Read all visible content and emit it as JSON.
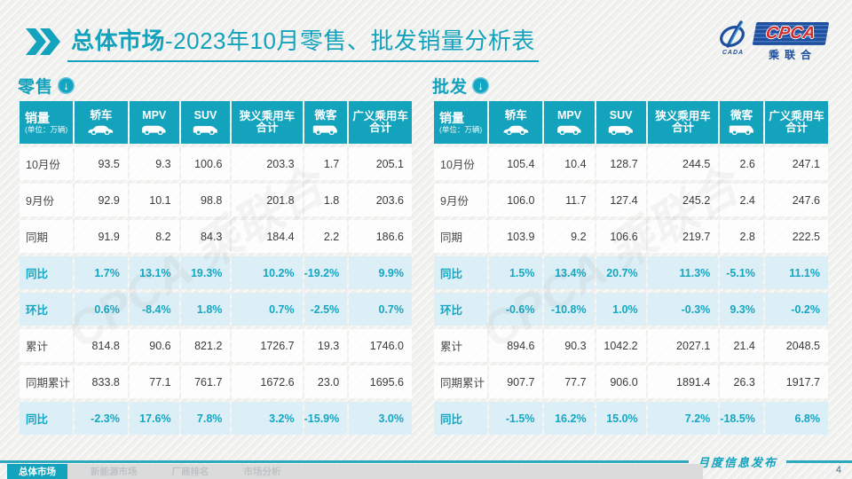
{
  "title": {
    "section": "总体市场",
    "rest": "-2023年10月零售、批发销量分析表"
  },
  "logo": {
    "cpca": "CPCA",
    "sub": "乘联合",
    "cada": "CADA"
  },
  "watermark": "CPCA 乘联合",
  "colors": {
    "accent_teal": "#14a3bd",
    "highlight_row_bg": "#dceff6",
    "highlight_text": "#14a6c2",
    "logo_red": "#d42a2a",
    "logo_blue": "#1d4f9e"
  },
  "tables": [
    {
      "label": "零售",
      "corner": {
        "title": "销量",
        "unit": "(单位：万辆)"
      },
      "columns": [
        {
          "label": "轿车",
          "icon": "sedan-icon"
        },
        {
          "label": "MPV",
          "icon": "mpv-icon"
        },
        {
          "label": "SUV",
          "icon": "suv-icon"
        },
        {
          "label": "狭义乘用车\n合计",
          "icon": null
        },
        {
          "label": "微客",
          "icon": "van-icon"
        },
        {
          "label": "广义乘用车\n合计",
          "icon": null
        }
      ],
      "rows": [
        {
          "label": "10月份",
          "values": [
            "93.5",
            "9.3",
            "100.6",
            "203.3",
            "1.7",
            "205.1"
          ],
          "highlight": false
        },
        {
          "label": "9月份",
          "values": [
            "92.9",
            "10.1",
            "98.8",
            "201.8",
            "1.8",
            "203.6"
          ],
          "highlight": false
        },
        {
          "label": "同期",
          "values": [
            "91.9",
            "8.2",
            "84.3",
            "184.4",
            "2.2",
            "186.6"
          ],
          "highlight": false
        },
        {
          "label": "同比",
          "values": [
            "1.7%",
            "13.1%",
            "19.3%",
            "10.2%",
            "-19.2%",
            "9.9%"
          ],
          "highlight": true
        },
        {
          "label": "环比",
          "values": [
            "0.6%",
            "-8.4%",
            "1.8%",
            "0.7%",
            "-2.5%",
            "0.7%"
          ],
          "highlight": true
        },
        {
          "label": "累计",
          "values": [
            "814.8",
            "90.6",
            "821.2",
            "1726.7",
            "19.3",
            "1746.0"
          ],
          "highlight": false
        },
        {
          "label": "同期累计",
          "values": [
            "833.8",
            "77.1",
            "761.7",
            "1672.6",
            "23.0",
            "1695.6"
          ],
          "highlight": false
        },
        {
          "label": "同比",
          "values": [
            "-2.3%",
            "17.6%",
            "7.8%",
            "3.2%",
            "-15.9%",
            "3.0%"
          ],
          "highlight": true
        }
      ]
    },
    {
      "label": "批发",
      "corner": {
        "title": "销量",
        "unit": "(单位：万辆)"
      },
      "columns": [
        {
          "label": "轿车",
          "icon": "sedan-icon"
        },
        {
          "label": "MPV",
          "icon": "mpv-icon"
        },
        {
          "label": "SUV",
          "icon": "suv-icon"
        },
        {
          "label": "狭义乘用车\n合计",
          "icon": null
        },
        {
          "label": "微客",
          "icon": "van-icon"
        },
        {
          "label": "广义乘用车\n合计",
          "icon": null
        }
      ],
      "rows": [
        {
          "label": "10月份",
          "values": [
            "105.4",
            "10.4",
            "128.7",
            "244.5",
            "2.6",
            "247.1"
          ],
          "highlight": false
        },
        {
          "label": "9月份",
          "values": [
            "106.0",
            "11.7",
            "127.4",
            "245.2",
            "2.4",
            "247.6"
          ],
          "highlight": false
        },
        {
          "label": "同期",
          "values": [
            "103.9",
            "9.2",
            "106.6",
            "219.7",
            "2.8",
            "222.5"
          ],
          "highlight": false
        },
        {
          "label": "同比",
          "values": [
            "1.5%",
            "13.4%",
            "20.7%",
            "11.3%",
            "-5.1%",
            "11.1%"
          ],
          "highlight": true
        },
        {
          "label": "环比",
          "values": [
            "-0.6%",
            "-10.8%",
            "1.0%",
            "-0.3%",
            "9.3%",
            "-0.2%"
          ],
          "highlight": true
        },
        {
          "label": "累计",
          "values": [
            "894.6",
            "90.3",
            "1042.2",
            "2027.1",
            "21.4",
            "2048.5"
          ],
          "highlight": false
        },
        {
          "label": "同期累计",
          "values": [
            "907.7",
            "77.7",
            "906.0",
            "1891.4",
            "26.3",
            "1917.7"
          ],
          "highlight": false
        },
        {
          "label": "同比",
          "values": [
            "-1.5%",
            "16.2%",
            "15.0%",
            "7.2%",
            "-18.5%",
            "6.8%"
          ],
          "highlight": true
        }
      ]
    }
  ],
  "footer": {
    "tabs": [
      {
        "label": "总体市场",
        "active": true
      },
      {
        "label": "新能源市场",
        "active": false
      },
      {
        "label": "厂商排名",
        "active": false
      },
      {
        "label": "市场分析",
        "active": false
      }
    ],
    "publish_label": "月度信息发布",
    "page_number": "4"
  }
}
